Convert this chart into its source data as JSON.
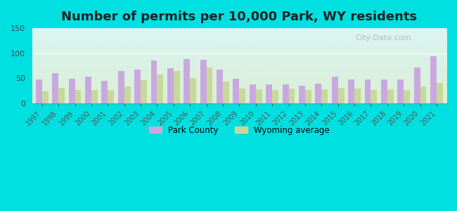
{
  "title": "Number of permits per 10,000 Park, WY residents",
  "years": [
    1997,
    1998,
    1999,
    2000,
    2001,
    2002,
    2003,
    2004,
    2005,
    2006,
    2007,
    2008,
    2009,
    2010,
    2011,
    2012,
    2013,
    2014,
    2015,
    2016,
    2017,
    2018,
    2019,
    2020,
    2021
  ],
  "park_county": [
    48,
    60,
    49,
    53,
    44,
    65,
    67,
    85,
    70,
    88,
    87,
    67,
    49,
    37,
    38,
    38,
    35,
    39,
    53,
    48,
    48,
    47,
    47,
    72,
    94
  ],
  "wyoming_avg": [
    23,
    30,
    27,
    26,
    26,
    33,
    46,
    57,
    65,
    50,
    72,
    43,
    29,
    28,
    26,
    29,
    27,
    28,
    31,
    29,
    27,
    28,
    26,
    33,
    41
  ],
  "park_color": "#c9a8e0",
  "wy_color": "#c8d89a",
  "outer_bg": "#00e0e0",
  "grad_top": "#daf5f2",
  "grad_bottom": "#daefd5",
  "ylim": [
    0,
    150
  ],
  "yticks": [
    0,
    50,
    100,
    150
  ],
  "title_fontsize": 13,
  "legend_labels": [
    "Park County",
    "Wyoming average"
  ]
}
